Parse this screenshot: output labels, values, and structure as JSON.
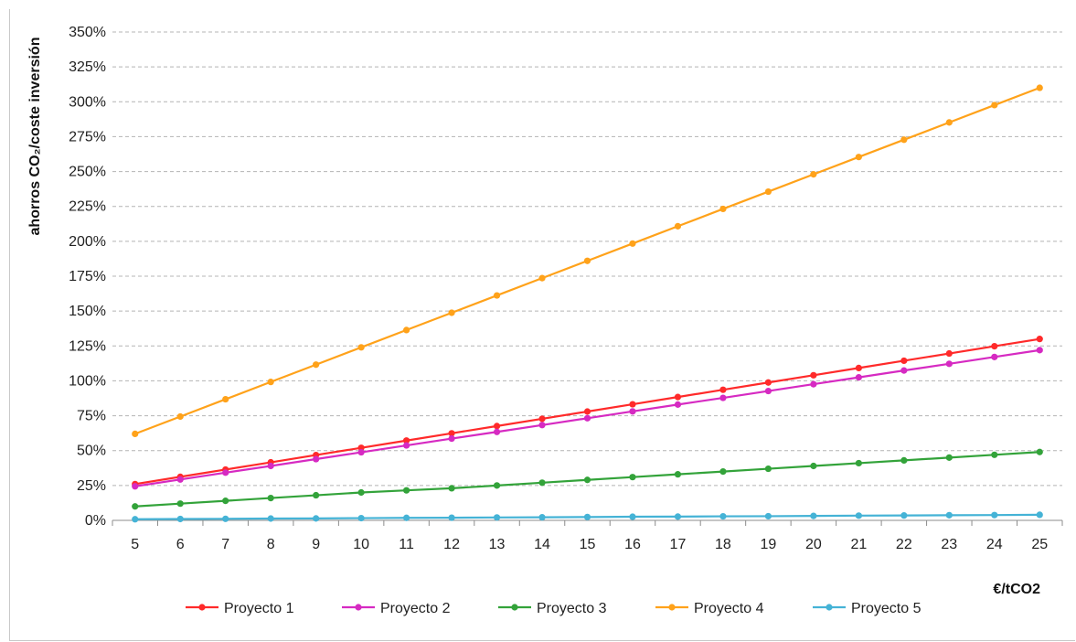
{
  "chart_data": {
    "type": "line",
    "title": "",
    "ylabel": "ahorros CO₂/coste inversión",
    "xlabel": "€/tCO2",
    "x": [
      5,
      6,
      7,
      8,
      9,
      10,
      11,
      12,
      13,
      14,
      15,
      16,
      17,
      18,
      19,
      20,
      21,
      22,
      23,
      24,
      25
    ],
    "ylim": [
      0,
      350
    ],
    "y_ticks": [
      0,
      25,
      50,
      75,
      100,
      125,
      150,
      175,
      200,
      225,
      250,
      275,
      300,
      325,
      350
    ],
    "y_tick_labels": [
      "0%",
      "25%",
      "50%",
      "75%",
      "100%",
      "125%",
      "150%",
      "175%",
      "200%",
      "225%",
      "250%",
      "275%",
      "300%",
      "325%",
      "350%"
    ],
    "grid": true,
    "legend_position": "bottom",
    "series": [
      {
        "name": "Proyecto 1",
        "color": "#ff2a2a",
        "values": [
          26,
          31.2,
          36.4,
          41.6,
          46.8,
          52,
          57.2,
          62.4,
          67.6,
          72.8,
          78,
          83.2,
          88.4,
          93.6,
          98.8,
          104,
          109.2,
          114.4,
          119.6,
          124.8,
          130
        ]
      },
      {
        "name": "Proyecto 2",
        "color": "#d62ac2",
        "values": [
          24.4,
          29.3,
          34.2,
          39,
          43.9,
          48.8,
          53.7,
          58.6,
          63.4,
          68.3,
          73.2,
          78.1,
          83,
          87.8,
          92.7,
          97.6,
          102.5,
          107.4,
          112.2,
          117.1,
          122
        ]
      },
      {
        "name": "Proyecto 3",
        "color": "#33a33a",
        "values": [
          10,
          12,
          14,
          16,
          18,
          20,
          21.5,
          23,
          25,
          27,
          29,
          31,
          33,
          35,
          37,
          39,
          41,
          43,
          45,
          47,
          49
        ]
      },
      {
        "name": "Proyecto 4",
        "color": "#ffa21a",
        "values": [
          62,
          74.4,
          86.8,
          99.2,
          111.6,
          124,
          136.4,
          148.8,
          161.2,
          173.6,
          186,
          198.4,
          210.8,
          223.2,
          235.6,
          248,
          260.4,
          272.8,
          285.2,
          297.6,
          310
        ]
      },
      {
        "name": "Proyecto 5",
        "color": "#45b3d6",
        "values": [
          0.8,
          1,
          1.1,
          1.3,
          1.4,
          1.6,
          1.8,
          1.9,
          2.1,
          2.2,
          2.4,
          2.6,
          2.7,
          2.9,
          3.0,
          3.2,
          3.4,
          3.5,
          3.7,
          3.8,
          4.0
        ]
      }
    ]
  }
}
